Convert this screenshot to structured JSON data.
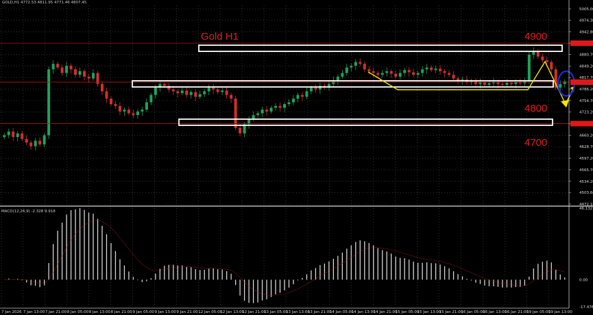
{
  "header": {
    "symbol": "GOLD,H1",
    "ohlc": "4772.53 4811.95 4771.46 4807.45"
  },
  "macd_label": "MACD(12,26,9) -2.328 9.918",
  "colors": {
    "bull": "#1fa35a",
    "bear": "#d32f2f",
    "annotation": "#e02020",
    "trendline": "#f2e600",
    "circle": "#1a2fd6",
    "grid": "#555555"
  },
  "chart_data": {
    "type": "candlestick",
    "title": "Gold H1",
    "ylim": [
      4472.1,
      5005.0
    ],
    "y_ticks": [
      "5005.00",
      "4974.30",
      "4942.80",
      "4911.30",
      "4880.70",
      "4849.20",
      "4817.70",
      "4786.20",
      "4754.70",
      "4723.20",
      "4691.70",
      "4660.20",
      "4628.70",
      "4597.20",
      "4565.70",
      "4534.20",
      "4503.60",
      "4472.10"
    ],
    "price_tags": [
      4911.3,
      4805.0,
      4691.7
    ],
    "levels": [
      {
        "label": "4900",
        "price": 4900
      },
      {
        "label": "4800",
        "price": 4800
      },
      {
        "label": "4700",
        "price": 4700
      }
    ],
    "closes": [
      4660,
      4670,
      4655,
      4665,
      4650,
      4640,
      4630,
      4645,
      4635,
      4660,
      4840,
      4855,
      4845,
      4830,
      4850,
      4840,
      4825,
      4835,
      4820,
      4815,
      4830,
      4800,
      4780,
      4760,
      4745,
      4740,
      4725,
      4730,
      4720,
      4715,
      4725,
      4730,
      4750,
      4770,
      4790,
      4800,
      4795,
      4785,
      4780,
      4775,
      4782,
      4770,
      4778,
      4765,
      4772,
      4780,
      4790,
      4785,
      4778,
      4782,
      4770,
      4760,
      4680,
      4665,
      4690,
      4705,
      4715,
      4720,
      4730,
      4725,
      4735,
      4740,
      4735,
      4745,
      4750,
      4760,
      4770,
      4765,
      4780,
      4790,
      4785,
      4795,
      4790,
      4800,
      4810,
      4820,
      4830,
      4845,
      4850,
      4860,
      4855,
      4840,
      4835,
      4830,
      4825,
      4830,
      4835,
      4828,
      4820,
      4830,
      4838,
      4832,
      4825,
      4830,
      4840,
      4845,
      4838,
      4842,
      4835,
      4830,
      4825,
      4815,
      4810,
      4812,
      4805,
      4808,
      4800,
      4804,
      4798,
      4802,
      4806,
      4800,
      4798,
      4803,
      4800,
      4805,
      4802,
      4810,
      4880,
      4890,
      4875,
      4865,
      4860,
      4840,
      4790,
      4800,
      4807
    ],
    "x_ticks": [
      "7 Jan 2026",
      "7 Jan 13:00",
      "7 Jan 21:00",
      "8 Jan 05:00",
      "8 Jan 13:00",
      "8 Jan 21:00",
      "9 Jan 05:00",
      "9 Jan 13:00",
      "9 Jan 21:00",
      "12 Jan 05:00",
      "12 Jan 13:00",
      "12 Jan 21:00",
      "13 Jan 05:00",
      "13 Jan 13:00",
      "13 Jan 21:00",
      "14 Jan 05:00",
      "14 Jan 13:00",
      "14 Jan 21:00",
      "15 Jan 05:00",
      "15 Jan 13:00",
      "15 Jan 21:00",
      "16 Jan 05:00",
      "16 Jan 13:00",
      "16 Jan 21:00",
      "19 Jan 05:00",
      "19 Jan 13:00"
    ],
    "macd": {
      "ylim": [
        -17.476,
        46.132
      ],
      "ticks": [
        "46.132",
        "0.00",
        "-17.476"
      ]
    },
    "grid": true
  }
}
